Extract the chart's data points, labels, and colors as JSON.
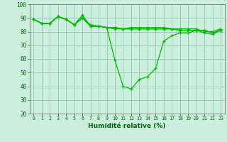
{
  "background_color": "#cceedd",
  "grid_color": "#99ccbb",
  "line_color": "#00bb00",
  "text_color": "#006600",
  "xlabel": "Humidité relative (%)",
  "ylim": [
    20,
    100
  ],
  "xlim": [
    -0.5,
    23.5
  ],
  "yticks": [
    20,
    30,
    40,
    50,
    60,
    70,
    80,
    90,
    100
  ],
  "xticks": [
    0,
    1,
    2,
    3,
    4,
    5,
    6,
    7,
    8,
    9,
    10,
    11,
    12,
    13,
    14,
    15,
    16,
    17,
    18,
    19,
    20,
    21,
    22,
    23
  ],
  "series": [
    [
      89,
      86,
      86,
      91,
      89,
      85,
      90,
      84,
      84,
      83,
      83,
      82,
      82,
      82,
      82,
      82,
      82,
      82,
      81,
      81,
      81,
      81,
      79,
      81
    ],
    [
      89,
      86,
      86,
      91,
      89,
      85,
      92,
      84,
      84,
      83,
      59,
      40,
      38,
      45,
      47,
      53,
      73,
      77,
      79,
      79,
      81,
      79,
      78,
      81
    ],
    [
      89,
      86,
      86,
      91,
      89,
      85,
      90,
      84,
      84,
      83,
      83,
      82,
      82,
      82,
      82,
      82,
      82,
      82,
      81,
      81,
      81,
      81,
      79,
      81
    ],
    [
      89,
      86,
      86,
      91,
      89,
      85,
      90,
      85,
      84,
      83,
      82,
      82,
      83,
      83,
      83,
      83,
      83,
      82,
      82,
      82,
      82,
      80,
      80,
      82
    ]
  ]
}
